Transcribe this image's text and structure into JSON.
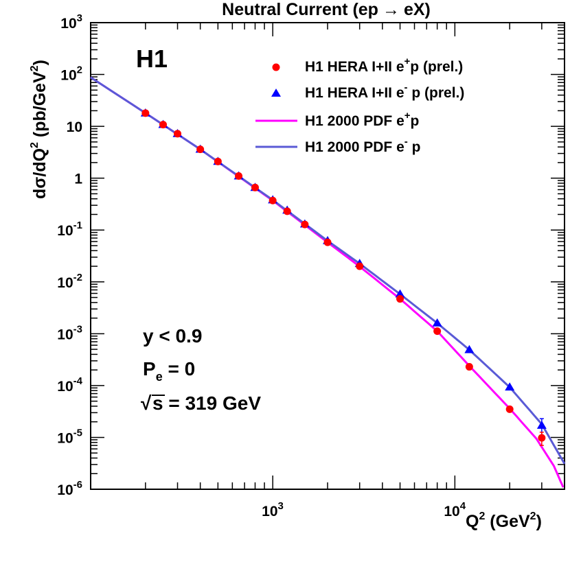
{
  "chart_data": {
    "type": "scatter",
    "title_main": "Neutral Current (ep",
    "title_arrow": "→",
    "title_end": "eX)",
    "experiment_label": "H1",
    "xlabel": {
      "base": "Q",
      "sup": "2",
      "unit_open": " (GeV",
      "unit_sup": "2",
      "unit_close": ")"
    },
    "ylabel": {
      "part1": "d",
      "sigma": "σ",
      "part2": "/dQ",
      "sup1": "2",
      "part3": " (pb/GeV",
      "sup2": "2",
      "part4": ")"
    },
    "x_scale": "log",
    "y_scale": "log",
    "xlim": [
      100,
      40000
    ],
    "ylim": [
      1e-06,
      1000
    ],
    "x_ticks": [
      {
        "value": 1000,
        "base": "10",
        "exp": "3"
      },
      {
        "value": 10000,
        "base": "10",
        "exp": "4"
      }
    ],
    "y_ticks": [
      {
        "value": 1000,
        "base": "10",
        "exp": "3"
      },
      {
        "value": 100,
        "base": "10",
        "exp": "2"
      },
      {
        "value": 10,
        "base": "10",
        "exp": ""
      },
      {
        "value": 1,
        "base": "1",
        "exp": ""
      },
      {
        "value": 0.1,
        "base": "10",
        "exp": "-1"
      },
      {
        "value": 0.01,
        "base": "10",
        "exp": "-2"
      },
      {
        "value": 0.001,
        "base": "10",
        "exp": "-3"
      },
      {
        "value": 0.0001,
        "base": "10",
        "exp": "-4"
      },
      {
        "value": 1e-05,
        "base": "10",
        "exp": "-5"
      },
      {
        "value": 1e-06,
        "base": "10",
        "exp": "-6"
      }
    ],
    "legend": [
      {
        "kind": "marker-circle",
        "color": "#ff0000",
        "text": "H1 HERA I+II e",
        "sup": "+",
        "tail": "p (prel.)"
      },
      {
        "kind": "marker-triangle",
        "color": "#0000ff",
        "text": "H1 HERA I+II e",
        "sup": "-",
        "tail": " p (prel.)"
      },
      {
        "kind": "line",
        "color": "#ff00ff",
        "text": "H1 2000 PDF e",
        "sup": "+",
        "tail": "p"
      },
      {
        "kind": "line",
        "color": "#5a5ad6",
        "text": "H1 2000 PDF e",
        "sup": "-",
        "tail": " p"
      }
    ],
    "annotations": {
      "y_cut": "y < 0.9",
      "pol_base": "P",
      "pol_sub": "e",
      "pol_tail": " = 0",
      "sqrt_sym": "√",
      "sqrt_arg": "s",
      "sqrt_tail": " = 319 GeV"
    },
    "series": [
      {
        "name": "H1 HERA I+II e+p (prel.)",
        "marker": "circle",
        "color": "#ff0000",
        "x": [
          200,
          250,
          300,
          400,
          500,
          650,
          800,
          1000,
          1200,
          1500,
          2000,
          3000,
          5000,
          8000,
          12000,
          20000,
          30000
        ],
        "y": [
          18,
          10.8,
          7.2,
          3.6,
          2.1,
          1.1,
          0.66,
          0.37,
          0.23,
          0.128,
          0.058,
          0.02,
          0.0047,
          0.00112,
          0.00023,
          3.5e-05,
          9.8e-06
        ],
        "err": [
          0,
          0,
          0,
          0,
          0,
          0,
          0,
          0,
          0,
          0,
          0,
          0,
          0,
          0,
          0,
          0,
          2.8e-06
        ]
      },
      {
        "name": "H1 HERA I+II e- p (prel.)",
        "marker": "triangle",
        "color": "#0000ff",
        "x": [
          200,
          250,
          300,
          400,
          500,
          650,
          800,
          1000,
          1200,
          1500,
          2000,
          3000,
          5000,
          8000,
          12000,
          20000,
          30000
        ],
        "y": [
          18,
          10.8,
          7.2,
          3.6,
          2.1,
          1.1,
          0.66,
          0.38,
          0.24,
          0.13,
          0.062,
          0.0225,
          0.0058,
          0.0016,
          0.00049,
          9.3e-05,
          1.7e-05
        ],
        "err": [
          0,
          0,
          0,
          0,
          0,
          0,
          0,
          0,
          0,
          0,
          0,
          0,
          0,
          0,
          0,
          0,
          6e-06
        ]
      },
      {
        "name": "H1 2000 PDF e+p",
        "line": true,
        "color": "#ff00ff",
        "x": [
          100,
          200,
          400,
          1000,
          2000,
          3000,
          5000,
          8000,
          12000,
          20000,
          28000,
          35000,
          40000
        ],
        "y": [
          88,
          18,
          3.6,
          0.37,
          0.058,
          0.0198,
          0.0047,
          0.00112,
          0.00024,
          3.6e-05,
          9.5e-06,
          2.8e-06,
          9.5e-07
        ]
      },
      {
        "name": "H1 2000 PDF e- p",
        "line": true,
        "color": "#5a5ad6",
        "x": [
          100,
          200,
          400,
          1000,
          2000,
          3000,
          5000,
          8000,
          12000,
          20000,
          30000,
          40000
        ],
        "y": [
          88,
          18,
          3.6,
          0.38,
          0.062,
          0.0225,
          0.0058,
          0.0016,
          0.00049,
          9.3e-05,
          1.8e-05,
          3.1e-06
        ]
      }
    ]
  }
}
